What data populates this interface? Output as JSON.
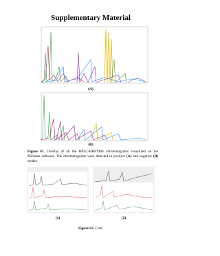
{
  "header": {
    "title": "Supplementary Material"
  },
  "figures": [
    {
      "label": "(A)"
    },
    {
      "label": "(B)"
    }
  ],
  "caption_s1": {
    "label": "Figure S1.",
    "parts": [
      "Overlay of all the HPLC-HRFTMS chromatograms visualized on the MZmine software. The chromatograms were detected in positive ",
      "(A)",
      " and negative ",
      "(B)",
      " modes."
    ]
  },
  "panels": [
    {
      "label": "(1)"
    },
    {
      "label": "(2)"
    }
  ],
  "caption_s2": {
    "label": "Figure S2.",
    "text": "Cont."
  }
}
